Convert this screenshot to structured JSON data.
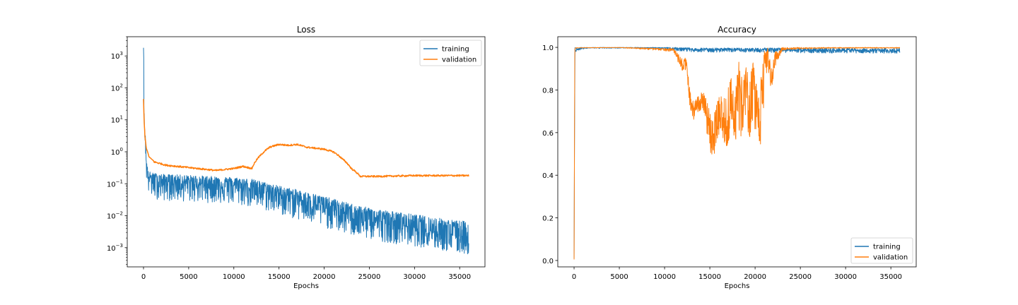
{
  "chart_data": [
    {
      "type": "line",
      "title": "Loss",
      "xlabel": "Epochs",
      "ylabel": "",
      "yscale": "log",
      "xlim": [
        -1800,
        37800
      ],
      "ylim": [
        0.00025,
        4000
      ],
      "xticks": [
        0,
        5000,
        10000,
        15000,
        20000,
        25000,
        30000,
        35000
      ],
      "yticks": [
        {
          "value": 0.001,
          "base": "10",
          "exp": "−3"
        },
        {
          "value": 0.01,
          "base": "10",
          "exp": "−2"
        },
        {
          "value": 0.1,
          "base": "10",
          "exp": "−1"
        },
        {
          "value": 1,
          "base": "10",
          "exp": "0"
        },
        {
          "value": 10,
          "base": "10",
          "exp": "1"
        },
        {
          "value": 100,
          "base": "10",
          "exp": "2"
        },
        {
          "value": 1000,
          "base": "10",
          "exp": "3"
        }
      ],
      "legend": {
        "position": "top-right"
      },
      "series": [
        {
          "name": "training",
          "color": "#1f77b4",
          "x": [
            0,
            50,
            150,
            300,
            500,
            1000,
            2000,
            4000,
            6000,
            8000,
            10000,
            12000,
            14000,
            16000,
            18000,
            20000,
            22000,
            24000,
            26000,
            28000,
            30000,
            32000,
            34000,
            36000
          ],
          "y": [
            1800,
            15,
            3,
            0.4,
            0.18,
            0.13,
            0.12,
            0.11,
            0.1,
            0.1,
            0.09,
            0.075,
            0.055,
            0.04,
            0.028,
            0.018,
            0.012,
            0.009,
            0.007,
            0.0055,
            0.0045,
            0.0035,
            0.0028,
            0.0022
          ],
          "y_low": [
            1800,
            10,
            1.5,
            0.15,
            0.05,
            0.035,
            0.03,
            0.028,
            0.026,
            0.025,
            0.022,
            0.018,
            0.013,
            0.009,
            0.006,
            0.0042,
            0.0028,
            0.002,
            0.0016,
            0.0013,
            0.0011,
            0.0009,
            0.0007,
            0.0006
          ],
          "y_high": [
            1800,
            20,
            5,
            0.6,
            0.25,
            0.22,
            0.2,
            0.19,
            0.18,
            0.17,
            0.16,
            0.14,
            0.1,
            0.075,
            0.055,
            0.04,
            0.028,
            0.02,
            0.016,
            0.013,
            0.011,
            0.009,
            0.0075,
            0.0065
          ]
        },
        {
          "name": "validation",
          "color": "#ff7f0e",
          "x": [
            0,
            50,
            150,
            300,
            600,
            1200,
            2500,
            5000,
            8000,
            10000,
            11000,
            12000,
            13000,
            14000,
            15000,
            16000,
            17000,
            18000,
            19000,
            20000,
            21000,
            22000,
            23000,
            24000,
            26000,
            30000,
            33000,
            36000
          ],
          "y": [
            45,
            10,
            3,
            1.3,
            0.7,
            0.48,
            0.38,
            0.32,
            0.26,
            0.3,
            0.35,
            0.3,
            0.8,
            1.4,
            1.7,
            1.6,
            1.7,
            1.4,
            1.3,
            1.2,
            1.0,
            0.6,
            0.3,
            0.17,
            0.17,
            0.18,
            0.18,
            0.18
          ]
        }
      ]
    },
    {
      "type": "line",
      "title": "Accuracy",
      "xlabel": "Epochs",
      "ylabel": "",
      "xlim": [
        -1800,
        37800
      ],
      "ylim": [
        -0.03,
        1.05
      ],
      "xticks": [
        0,
        5000,
        10000,
        15000,
        20000,
        25000,
        30000,
        35000
      ],
      "yticks": [
        0.0,
        0.2,
        0.4,
        0.6,
        0.8,
        1.0
      ],
      "ytick_labels": [
        "0.0",
        "0.2",
        "0.4",
        "0.6",
        "0.8",
        "1.0"
      ],
      "legend": {
        "position": "bottom-right"
      },
      "series": [
        {
          "name": "training",
          "color": "#1f77b4",
          "x": [
            0,
            50,
            100,
            200,
            300,
            500,
            800,
            1500,
            5000,
            9000,
            10000,
            11000,
            13000,
            15000,
            17000,
            19000,
            21000,
            23000,
            26000,
            30000,
            33000,
            36000
          ],
          "y": [
            0.01,
            0.6,
            0.99,
            0.98,
            0.99,
            0.99,
            0.995,
            0.998,
            0.998,
            0.998,
            0.997,
            0.995,
            0.99,
            0.988,
            0.99,
            0.988,
            0.989,
            0.987,
            0.985,
            0.985,
            0.985,
            0.984
          ],
          "y_low": [
            0.01,
            0.6,
            0.97,
            0.97,
            0.98,
            0.985,
            0.99,
            0.995,
            0.996,
            0.995,
            0.99,
            0.985,
            0.978,
            0.976,
            0.978,
            0.976,
            0.977,
            0.975,
            0.973,
            0.973,
            0.972,
            0.972
          ],
          "y_high": [
            0.01,
            0.6,
            1.0,
            0.99,
            1.0,
            1.0,
            1.0,
            1.0,
            1.0,
            1.0,
            1.0,
            1.0,
            0.998,
            0.997,
            0.998,
            0.997,
            0.998,
            0.997,
            0.996,
            0.996,
            0.996,
            0.996
          ]
        },
        {
          "name": "validation",
          "color": "#ff7f0e",
          "x": [
            0,
            80,
            150,
            300,
            1000,
            5000,
            11000,
            11500,
            12000,
            12400,
            12800,
            13200,
            13800,
            14200,
            14600,
            15000,
            15400,
            15800,
            16200,
            16600,
            17000,
            17400,
            17800,
            18200,
            18600,
            19000,
            19400,
            19800,
            20200,
            20600,
            21000,
            21400,
            21800,
            22200,
            22600,
            23000,
            24000,
            27000,
            32000,
            36000
          ],
          "y": [
            0.005,
            0.99,
            0.995,
            0.997,
            0.998,
            0.999,
            0.99,
            0.95,
            0.91,
            0.94,
            0.78,
            0.69,
            0.74,
            0.78,
            0.7,
            0.58,
            0.52,
            0.64,
            0.7,
            0.6,
            0.55,
            0.72,
            0.6,
            0.85,
            0.72,
            0.9,
            0.6,
            0.88,
            0.72,
            0.55,
            0.93,
            0.97,
            0.82,
            0.95,
            0.97,
            0.99,
            0.995,
            0.997,
            0.998,
            0.998
          ],
          "y_low": [
            0.005,
            0.99,
            0.995,
            0.997,
            0.998,
            0.999,
            0.98,
            0.92,
            0.88,
            0.9,
            0.72,
            0.66,
            0.68,
            0.7,
            0.62,
            0.5,
            0.48,
            0.56,
            0.62,
            0.54,
            0.53,
            0.62,
            0.54,
            0.62,
            0.55,
            0.62,
            0.55,
            0.64,
            0.58,
            0.54,
            0.72,
            0.88,
            0.79,
            0.9,
            0.95,
            0.985,
            0.99,
            0.995,
            0.996,
            0.996
          ],
          "y_high": [
            0.005,
            0.99,
            0.998,
            0.999,
            0.999,
            1.0,
            0.995,
            0.97,
            0.95,
            0.96,
            0.8,
            0.74,
            0.78,
            0.8,
            0.77,
            0.7,
            0.72,
            0.75,
            0.78,
            0.76,
            0.82,
            0.86,
            0.8,
            0.94,
            0.92,
            0.92,
            0.9,
            0.93,
            0.88,
            0.86,
            0.98,
            1.0,
            0.9,
            0.98,
            0.99,
            1.0,
            1.0,
            1.0,
            1.0,
            1.0
          ]
        }
      ]
    }
  ]
}
